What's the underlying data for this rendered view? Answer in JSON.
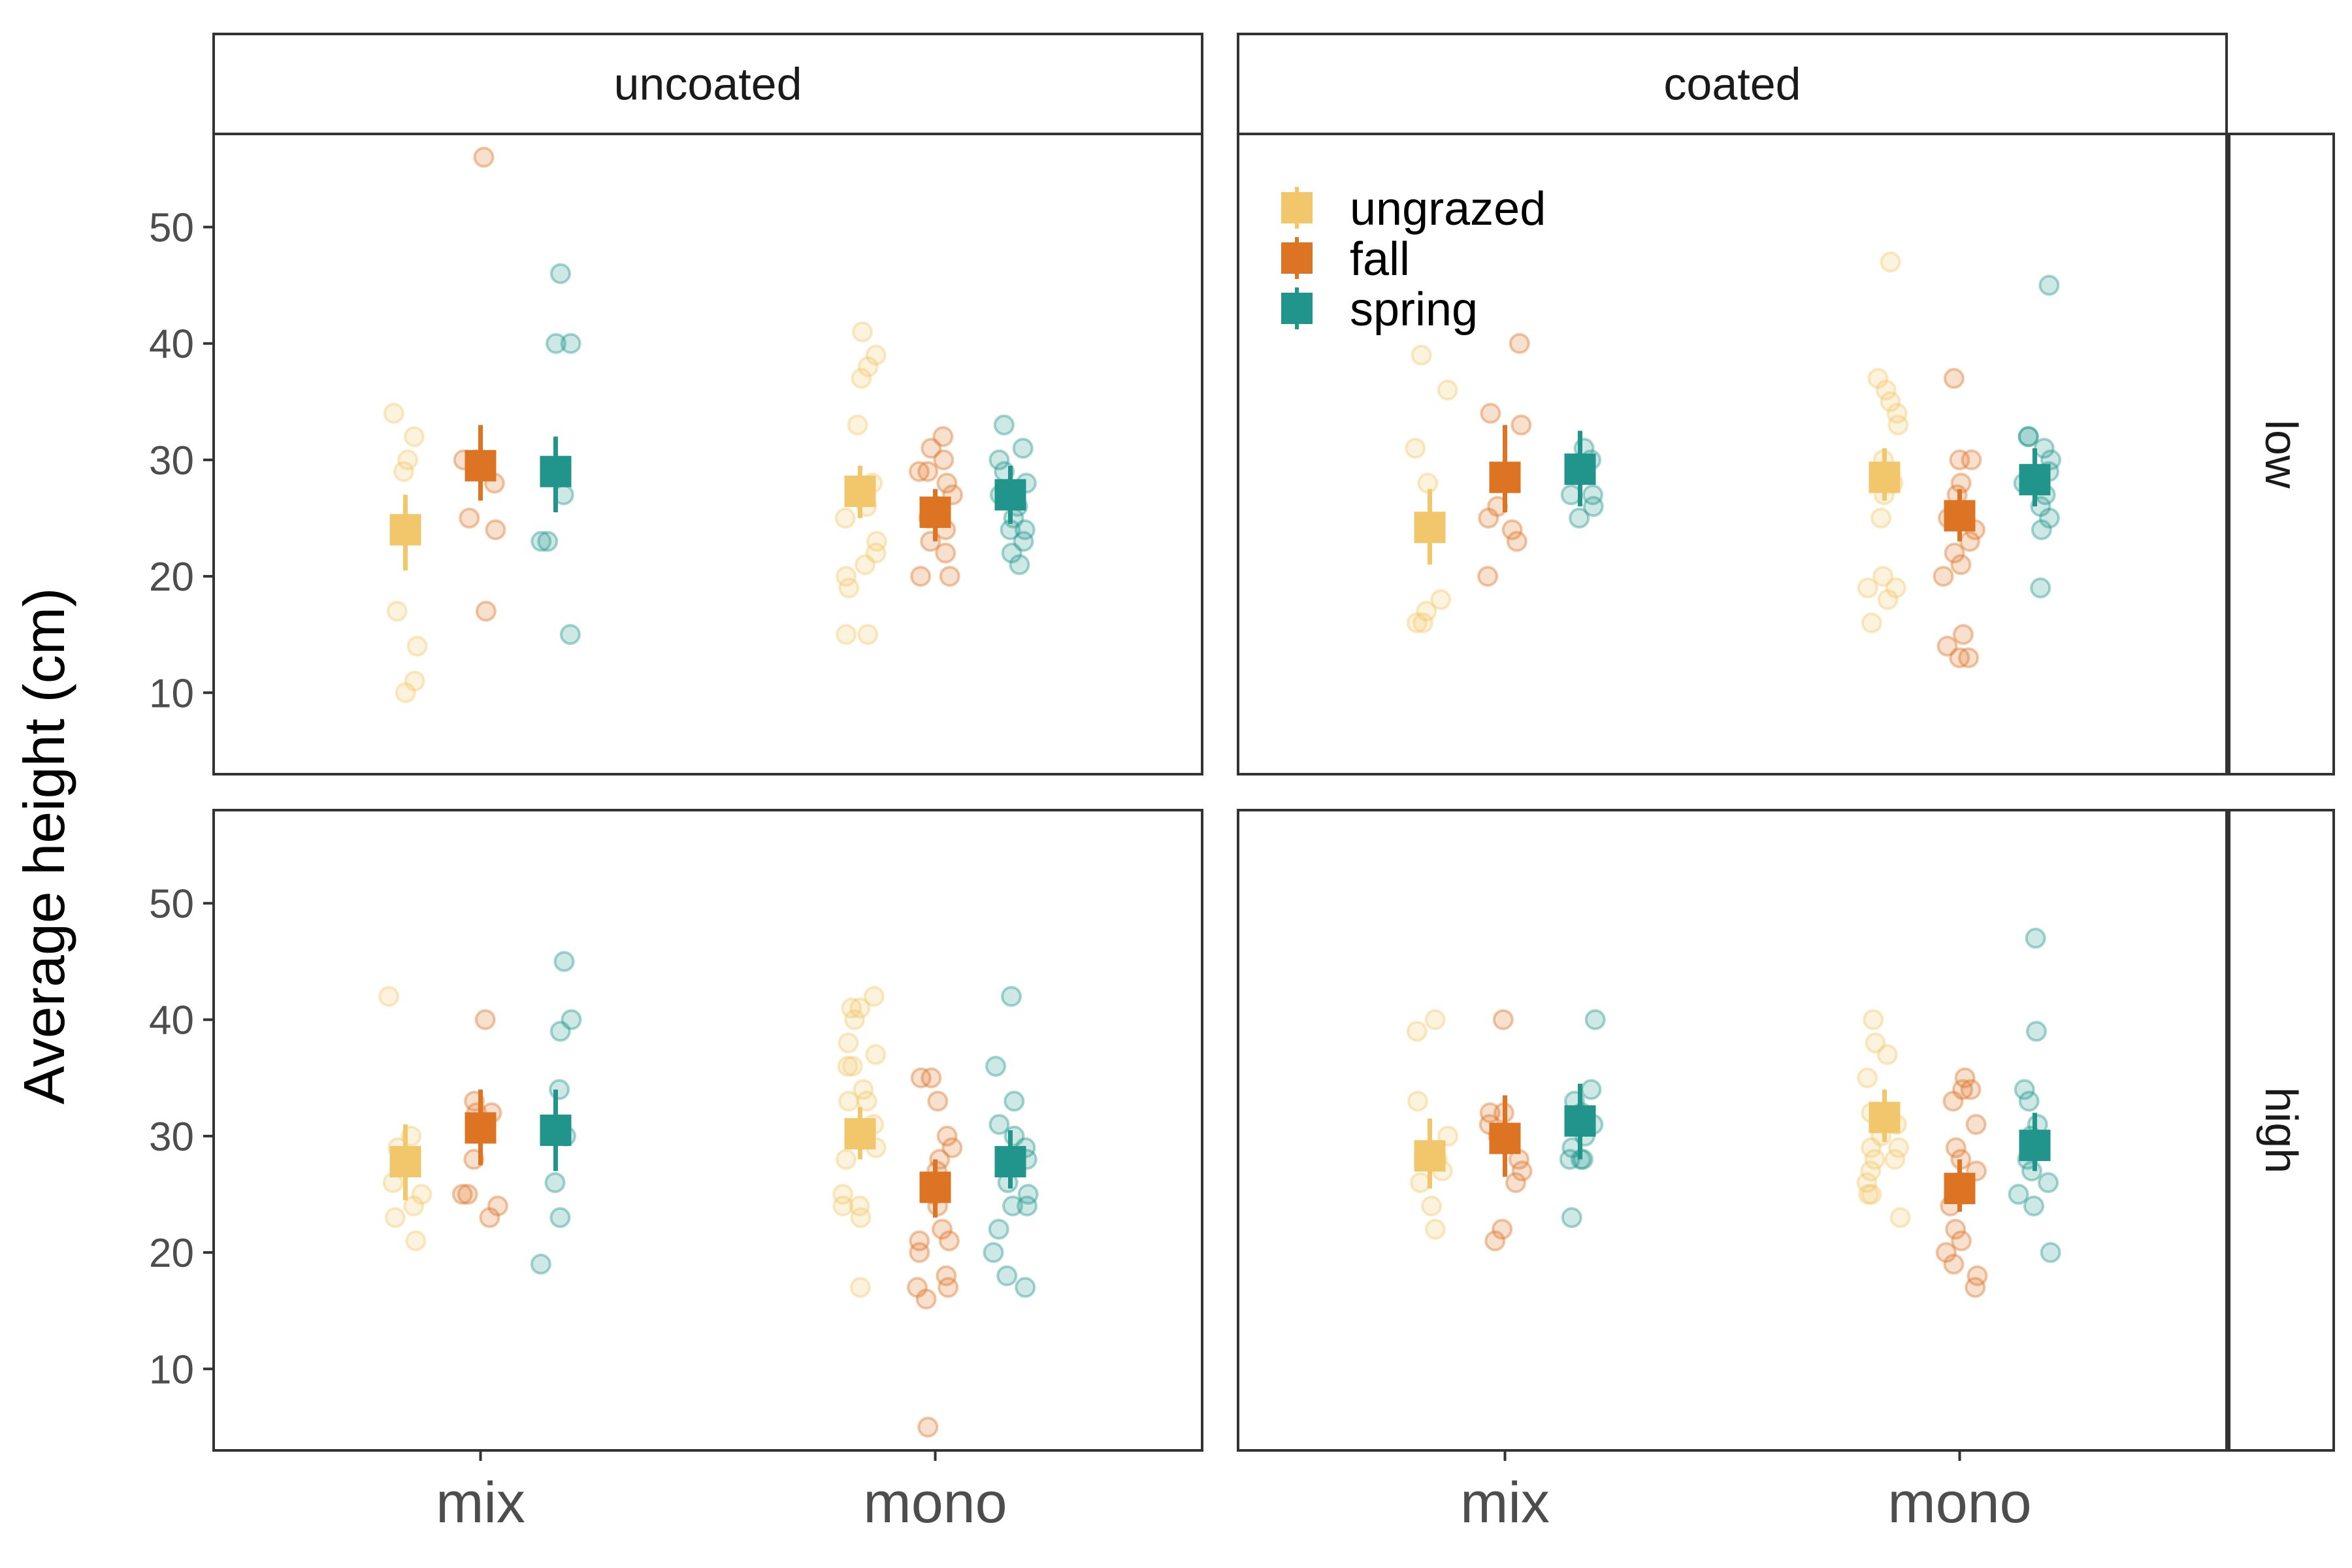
{
  "chart_data": {
    "type": "scatter",
    "ylabel": "Average height (cm)",
    "xlabel": "",
    "x_categories": [
      "mix",
      "mono"
    ],
    "column_facets": [
      "uncoated",
      "coated"
    ],
    "row_facets": [
      "low",
      "high"
    ],
    "ylim": [
      3,
      58
    ],
    "yticks": [
      10,
      20,
      30,
      40,
      50
    ],
    "grid": false,
    "legend_position": "top-left inside panel coated/low",
    "series": [
      {
        "name": "ungrazed",
        "color": "#F2C76B"
      },
      {
        "name": "fall",
        "color": "#DD7424"
      },
      {
        "name": "spring",
        "color": "#21958B"
      }
    ],
    "summary_marker": "square with error bar",
    "panels": [
      {
        "column": "uncoated",
        "row": "low",
        "groups": [
          {
            "x": "mix",
            "series": "ungrazed",
            "mean": 24,
            "lower": 20.5,
            "upper": 27,
            "points": [
              34,
              32,
              30,
              29,
              17,
              14,
              11,
              10
            ]
          },
          {
            "x": "mix",
            "series": "fall",
            "mean": 29.5,
            "lower": 26.5,
            "upper": 33,
            "points": [
              56,
              30,
              30,
              28,
              25,
              24,
              17
            ]
          },
          {
            "x": "mix",
            "series": "spring",
            "mean": 29,
            "lower": 25.5,
            "upper": 32,
            "points": [
              46,
              40,
              40,
              27,
              23,
              23,
              15
            ]
          },
          {
            "x": "mono",
            "series": "ungrazed",
            "mean": 27.3,
            "lower": 25,
            "upper": 29.5,
            "points": [
              41,
              39,
              38,
              37,
              33,
              28,
              26,
              25,
              23,
              22,
              21,
              20,
              19,
              15,
              15
            ]
          },
          {
            "x": "mono",
            "series": "fall",
            "mean": 25.5,
            "lower": 23,
            "upper": 27.5,
            "points": [
              32,
              31,
              30,
              29,
              29,
              28,
              27,
              26,
              25,
              24,
              23,
              22,
              20,
              20
            ]
          },
          {
            "x": "mono",
            "series": "spring",
            "mean": 27,
            "lower": 24.5,
            "upper": 29.5,
            "points": [
              33,
              31,
              30,
              29,
              28,
              27,
              26,
              25,
              24,
              24,
              23,
              22,
              21
            ]
          }
        ]
      },
      {
        "column": "coated",
        "row": "low",
        "groups": [
          {
            "x": "mix",
            "series": "ungrazed",
            "mean": 24.2,
            "lower": 21,
            "upper": 27.5,
            "points": [
              39,
              36,
              31,
              28,
              18,
              17,
              16,
              16
            ]
          },
          {
            "x": "mix",
            "series": "fall",
            "mean": 28.5,
            "lower": 25.5,
            "upper": 33,
            "points": [
              40,
              34,
              33,
              26,
              25,
              24,
              23,
              20
            ]
          },
          {
            "x": "mix",
            "series": "spring",
            "mean": 29.2,
            "lower": 26,
            "upper": 32.5,
            "points": [
              31,
              30,
              29,
              29,
              27,
              27,
              26,
              25
            ]
          },
          {
            "x": "mono",
            "series": "ungrazed",
            "mean": 28.5,
            "lower": 26.5,
            "upper": 31,
            "points": [
              47,
              37,
              36,
              35,
              34,
              33,
              30,
              29,
              28,
              27,
              25,
              20,
              19,
              19,
              18,
              16
            ]
          },
          {
            "x": "mono",
            "series": "fall",
            "mean": 25.2,
            "lower": 23,
            "upper": 27.5,
            "points": [
              37,
              30,
              30,
              28,
              27,
              25,
              24,
              23,
              22,
              21,
              20,
              15,
              14,
              13,
              13
            ]
          },
          {
            "x": "mono",
            "series": "spring",
            "mean": 28.3,
            "lower": 26,
            "upper": 31,
            "points": [
              45,
              32,
              32,
              31,
              30,
              29,
              28,
              27,
              26,
              25,
              24,
              19
            ]
          }
        ]
      },
      {
        "column": "uncoated",
        "row": "high",
        "groups": [
          {
            "x": "mix",
            "series": "ungrazed",
            "mean": 27.8,
            "lower": 24.5,
            "upper": 31,
            "points": [
              42,
              30,
              29,
              26,
              25,
              24,
              23,
              21
            ]
          },
          {
            "x": "mix",
            "series": "fall",
            "mean": 30.7,
            "lower": 27.5,
            "upper": 34,
            "points": [
              40,
              33,
              32,
              32,
              28,
              25,
              25,
              24,
              23
            ]
          },
          {
            "x": "mix",
            "series": "spring",
            "mean": 30.5,
            "lower": 27,
            "upper": 34,
            "points": [
              45,
              40,
              39,
              34,
              30,
              26,
              23,
              19
            ]
          },
          {
            "x": "mono",
            "series": "ungrazed",
            "mean": 30.2,
            "lower": 28,
            "upper": 32.5,
            "points": [
              42,
              41,
              41,
              40,
              38,
              37,
              36,
              36,
              34,
              33,
              33,
              31,
              30,
              29,
              28,
              25,
              24,
              24,
              23,
              17
            ]
          },
          {
            "x": "mono",
            "series": "fall",
            "mean": 25.6,
            "lower": 23,
            "upper": 28,
            "points": [
              35,
              35,
              33,
              30,
              29,
              28,
              27,
              25,
              24,
              22,
              21,
              21,
              20,
              18,
              17,
              17,
              16,
              5
            ]
          },
          {
            "x": "mono",
            "series": "spring",
            "mean": 27.8,
            "lower": 25.5,
            "upper": 30.5,
            "points": [
              42,
              36,
              33,
              31,
              30,
              29,
              28,
              26,
              25,
              24,
              24,
              22,
              20,
              18,
              17
            ]
          }
        ]
      },
      {
        "column": "coated",
        "row": "high",
        "groups": [
          {
            "x": "mix",
            "series": "ungrazed",
            "mean": 28.3,
            "lower": 25.5,
            "upper": 31.5,
            "points": [
              40,
              39,
              33,
              30,
              28,
              27,
              26,
              24,
              22
            ]
          },
          {
            "x": "mix",
            "series": "fall",
            "mean": 29.8,
            "lower": 26.5,
            "upper": 33.5,
            "points": [
              40,
              32,
              32,
              31,
              30,
              28,
              27,
              26,
              22,
              21
            ]
          },
          {
            "x": "mix",
            "series": "spring",
            "mean": 31.3,
            "lower": 28,
            "upper": 34.5,
            "points": [
              40,
              34,
              33,
              32,
              31,
              30,
              29,
              28,
              28,
              28,
              23
            ]
          },
          {
            "x": "mono",
            "series": "ungrazed",
            "mean": 31.6,
            "lower": 29.5,
            "upper": 34,
            "points": [
              40,
              38,
              37,
              35,
              32,
              31,
              30,
              29,
              29,
              28,
              28,
              27,
              26,
              25,
              25,
              23
            ]
          },
          {
            "x": "mono",
            "series": "fall",
            "mean": 25.5,
            "lower": 23.5,
            "upper": 28,
            "points": [
              35,
              34,
              34,
              33,
              31,
              29,
              28,
              27,
              26,
              25,
              24,
              22,
              21,
              20,
              19,
              18,
              17
            ]
          },
          {
            "x": "mono",
            "series": "spring",
            "mean": 29.2,
            "lower": 27,
            "upper": 32,
            "points": [
              47,
              39,
              34,
              33,
              31,
              30,
              29,
              28,
              27,
              26,
              25,
              24,
              20
            ]
          }
        ]
      }
    ]
  }
}
